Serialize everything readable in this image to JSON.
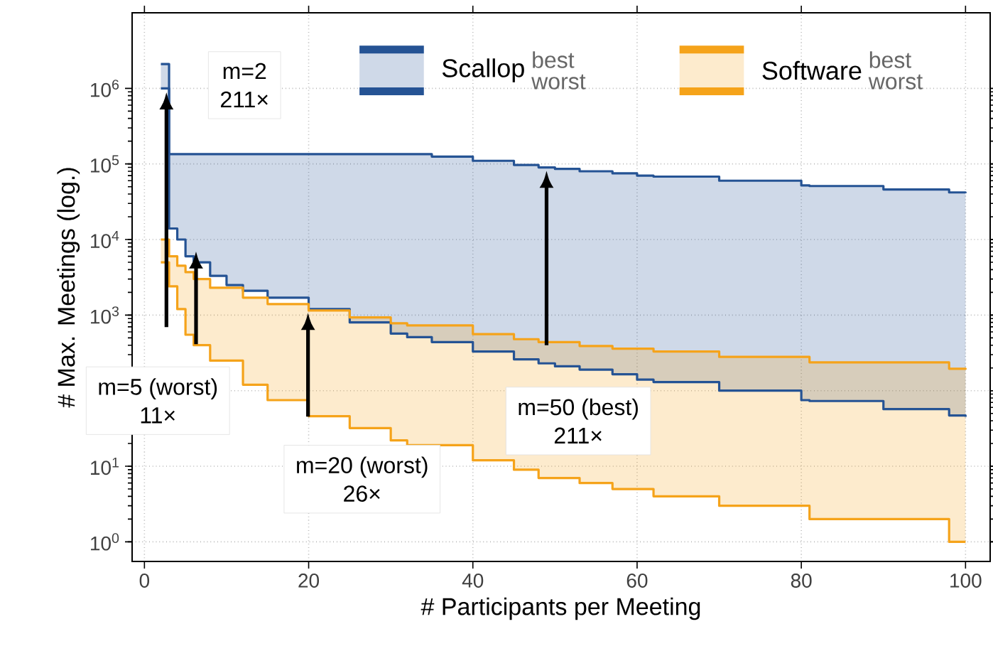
{
  "chart_data": {
    "type": "step",
    "xlabel": "# Participants per Meeting",
    "ylabel": "# Max. Meetings (log.)",
    "log": "y",
    "grid": true,
    "legend": "top right",
    "xlim": [
      -1.5,
      103
    ],
    "xticks": [
      0,
      20,
      40,
      60,
      80,
      100
    ],
    "ylim": [
      0.55,
      10000000
    ],
    "yticks": [
      {
        "value": 1,
        "label": "10$^{0}$"
      },
      {
        "value": 10,
        "label": "10$^{1}$"
      },
      {
        "value": 100,
        "label": null
      },
      {
        "value": 1000,
        "label": "10$^{3}$"
      },
      {
        "value": 10000,
        "label": "10$^{4}$"
      },
      {
        "value": 100000,
        "label": "10$^{5}$"
      },
      {
        "value": 1000000,
        "label": "10$^{6}$"
      }
    ],
    "series": [
      {
        "name": "Scallop",
        "color": "#255394",
        "x": [
          2,
          3,
          4,
          5,
          6,
          8,
          10,
          12,
          15,
          20,
          25,
          30,
          32,
          35,
          40,
          45,
          48,
          50,
          53,
          57,
          60,
          62,
          70,
          80,
          81,
          90,
          98,
          100
        ],
        "values": [
          2100000,
          135000,
          135000,
          135000,
          135000,
          135000,
          135000,
          135000,
          135000,
          135000,
          135000,
          135000,
          135000,
          125000,
          110000,
          97000,
          90000,
          86000,
          80000,
          75000,
          70000,
          68000,
          60000,
          52000,
          51000,
          46000,
          42000,
          41000
        ],
        "upper": [
          2100000,
          135000,
          135000,
          135000,
          135000,
          135000,
          135000,
          135000,
          135000,
          135000,
          135000,
          135000,
          135000,
          125000,
          110000,
          97000,
          90000,
          86000,
          80000,
          75000,
          70000,
          68000,
          60000,
          52000,
          51000,
          46000,
          42000,
          41000
        ],
        "lower": [
          1000000,
          14000,
          10000,
          6000,
          5000,
          3300,
          2500,
          2100,
          1700,
          1200,
          800,
          570,
          510,
          440,
          330,
          260,
          230,
          210,
          190,
          165,
          140,
          130,
          100,
          75,
          73,
          57,
          47,
          45
        ]
      },
      {
        "color": "#255394",
        "x": [
          2,
          3,
          4,
          5,
          6,
          8,
          10,
          12,
          15,
          20,
          25,
          30,
          32,
          35,
          40,
          45,
          48,
          50,
          53,
          57,
          60,
          62,
          70,
          80,
          81,
          90,
          98,
          100
        ],
        "values": [
          1000000,
          14000,
          10000,
          6000,
          5000,
          3300,
          2500,
          2100,
          1700,
          1200,
          800,
          570,
          510,
          440,
          330,
          260,
          230,
          210,
          190,
          165,
          140,
          130,
          100,
          75,
          73,
          57,
          47,
          45
        ]
      },
      {
        "name": "Software",
        "color": "#f5a31a",
        "x": [
          2,
          3,
          4,
          5,
          6,
          8,
          12,
          15,
          20,
          25,
          30,
          32,
          40,
          45,
          48,
          53,
          57,
          62,
          70,
          81,
          98,
          100
        ],
        "values": [
          10000,
          6000,
          4500,
          3700,
          3000,
          2300,
          1700,
          1400,
          1150,
          930,
          780,
          730,
          560,
          480,
          440,
          390,
          360,
          330,
          280,
          237,
          195,
          190
        ],
        "upper": [
          10000,
          6000,
          4500,
          3700,
          3000,
          2300,
          1700,
          1400,
          1150,
          930,
          780,
          730,
          560,
          480,
          440,
          390,
          360,
          330,
          280,
          237,
          195,
          190
        ],
        "lower": [
          5000,
          2400,
          1200,
          550,
          400,
          250,
          120,
          75,
          46,
          32,
          22,
          19,
          12,
          9,
          7,
          6,
          5,
          4,
          3,
          2,
          1,
          1
        ]
      },
      {
        "color": "#f5a31a",
        "x": [
          2,
          3,
          4,
          5,
          6,
          8,
          12,
          15,
          20,
          25,
          30,
          32,
          40,
          45,
          48,
          53,
          57,
          62,
          70,
          81,
          98,
          100
        ],
        "values": [
          5000,
          2400,
          1200,
          550,
          400,
          250,
          120,
          75,
          46,
          32,
          22,
          19,
          12,
          9,
          7,
          6,
          5,
          4,
          3,
          2,
          1,
          1
        ]
      }
    ],
    "annotations": [
      "best",
      "worst",
      "best",
      "worst",
      "m=2",
      "211×",
      "m=5 (worst)",
      "11×",
      "m=20 (worst)",
      "26×",
      "m=50 (best)",
      "211×"
    ]
  }
}
